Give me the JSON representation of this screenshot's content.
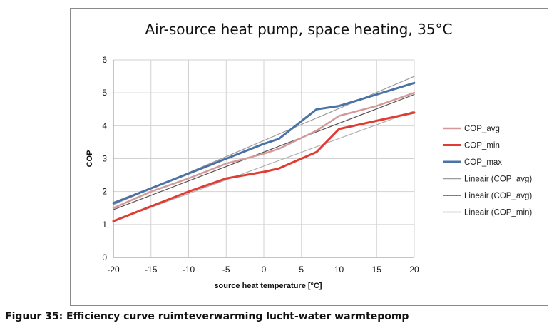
{
  "chart_data": {
    "type": "line",
    "title": "Air-source heat pump, space heating, 35°C",
    "xlabel": "source heat temperature [°C]",
    "ylabel": "COP",
    "xlim": [
      -20,
      20
    ],
    "ylim": [
      0,
      6
    ],
    "xticks": [
      -20,
      -15,
      -10,
      -5,
      0,
      5,
      10,
      15,
      20
    ],
    "yticks": [
      0,
      1,
      2,
      3,
      4,
      5,
      6
    ],
    "grid": true,
    "legend_position": "right",
    "series": [
      {
        "name": "COP_avg",
        "color": "#d4999b",
        "width": 2.5,
        "x": [
          -20,
          -15,
          -10,
          -5,
          0,
          2,
          7,
          10,
          15,
          20
        ],
        "y": [
          1.5,
          2.0,
          2.4,
          2.85,
          3.15,
          3.3,
          3.85,
          4.3,
          4.6,
          5.0
        ]
      },
      {
        "name": "COP_min",
        "color": "#e03c34",
        "width": 3,
        "x": [
          -20,
          -15,
          -10,
          -5,
          0,
          2,
          7,
          10,
          15,
          20
        ],
        "y": [
          1.1,
          1.55,
          2.0,
          2.4,
          2.6,
          2.7,
          3.2,
          3.9,
          4.15,
          4.4
        ]
      },
      {
        "name": "COP_max",
        "color": "#4a72a6",
        "width": 3,
        "x": [
          -20,
          -15,
          -10,
          -5,
          0,
          2,
          7,
          10,
          15,
          20
        ],
        "y": [
          1.65,
          2.1,
          2.55,
          3.0,
          3.45,
          3.6,
          4.5,
          4.6,
          4.95,
          5.3
        ]
      },
      {
        "name": "Lineair (COP_avg)",
        "color": "#9c9c9c",
        "width": 1.2,
        "x": [
          -20,
          20
        ],
        "y": [
          1.6,
          5.5
        ]
      },
      {
        "name": "Lineair (COP_avg)",
        "color": "#555555",
        "width": 1.2,
        "x": [
          -20,
          20
        ],
        "y": [
          1.45,
          4.95
        ]
      },
      {
        "name": "Lineair (COP_min)",
        "color": "#b0b0b0",
        "width": 1.2,
        "x": [
          -20,
          20
        ],
        "y": [
          1.1,
          4.45
        ]
      }
    ]
  },
  "caption": "Figuur 35: Efficiency curve ruimteverwarming lucht-water warmtepomp"
}
